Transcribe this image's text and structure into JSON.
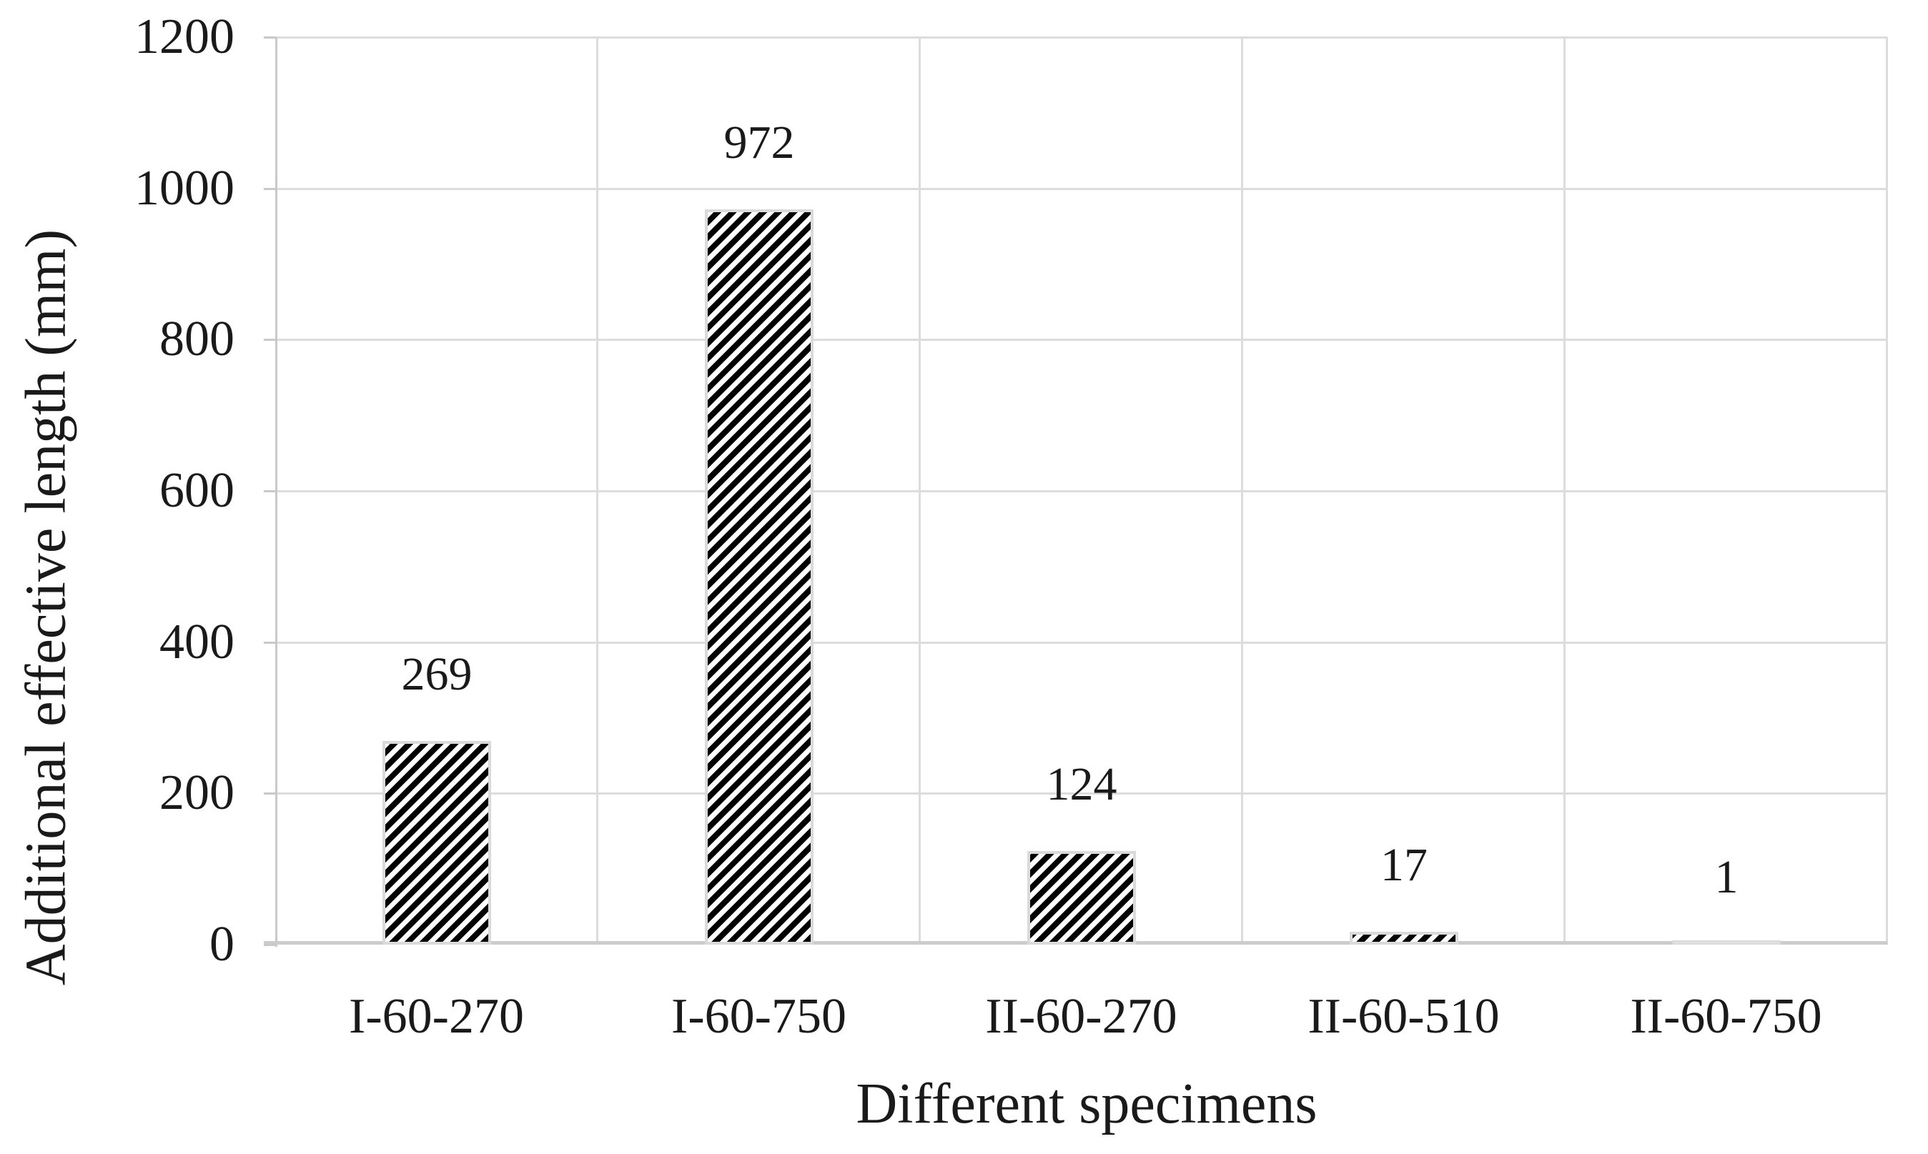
{
  "chart_data": {
    "type": "bar",
    "title": "",
    "xlabel": "Different specimens",
    "ylabel": "Additional effective length (mm)",
    "categories": [
      "I-60-270",
      "I-60-750",
      "II-60-270",
      "II-60-510",
      "II-60-750"
    ],
    "values": [
      269,
      972,
      124,
      17,
      1
    ],
    "data_labels": [
      "269",
      "972",
      "124",
      "17",
      "1"
    ],
    "ylim": [
      0,
      1200
    ],
    "yticks": [
      0,
      200,
      400,
      600,
      800,
      1000,
      1200
    ],
    "grid": "horizontal gridlines at each y tick, vertical gridlines at category boundaries, full frame",
    "legend_position": "none",
    "bar_style": {
      "fill": "black diagonal hatch stripes on white",
      "hatch_color": "#000000",
      "bar_background": "#ffffff",
      "bar_border_color": "#dadada"
    },
    "colors": {
      "text": "#1a1a1a",
      "gridline": "#dcdcdc",
      "axis_line": "#c9c9c9",
      "background": "#ffffff"
    }
  }
}
